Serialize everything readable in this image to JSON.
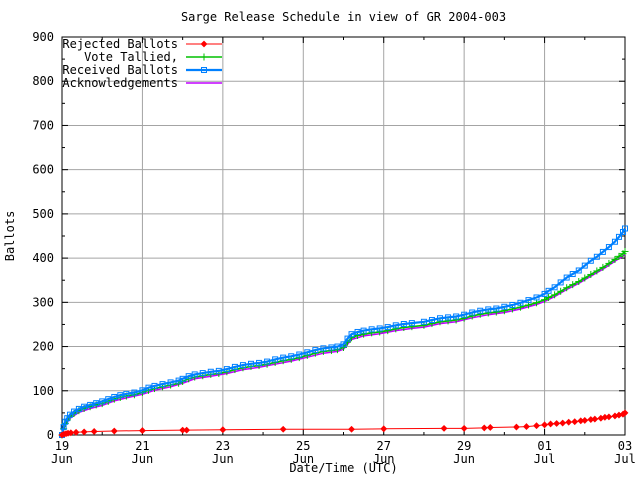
{
  "window": {
    "background": "#ffffff"
  },
  "chart_data": {
    "type": "line",
    "title": "Sarge Release Schedule in view of GR 2004-003",
    "xlabel": "Date/Time (UTC)",
    "ylabel": "Ballots",
    "xlim": [
      0,
      14
    ],
    "ylim": [
      0,
      900
    ],
    "y_major_step": 100,
    "y_minor_step": 50,
    "x_major_step": 2,
    "x_minor_step": 1,
    "grid": true,
    "grid_color": "#a4a4a4",
    "border_color": "#000000",
    "text_color": "#000000",
    "legend_position": "top-left",
    "x_tick_labels": [
      {
        "x": 0,
        "top": "19",
        "bottom": "Jun"
      },
      {
        "x": 2,
        "top": "21",
        "bottom": "Jun"
      },
      {
        "x": 4,
        "top": "23",
        "bottom": "Jun"
      },
      {
        "x": 6,
        "top": "25",
        "bottom": "Jun"
      },
      {
        "x": 8,
        "top": "27",
        "bottom": "Jun"
      },
      {
        "x": 10,
        "top": "29",
        "bottom": "Jun"
      },
      {
        "x": 12,
        "top": "01",
        "bottom": "Jul"
      },
      {
        "x": 14,
        "top": "03",
        "bottom": "Jul"
      }
    ],
    "y_tick_labels": [
      "0",
      "100",
      "200",
      "300",
      "400",
      "500",
      "600",
      "700",
      "800",
      "900"
    ],
    "series": [
      {
        "name": "Rejected Ballots",
        "color": "#ff0000",
        "marker": "diamond",
        "line_width": 1,
        "z": 4,
        "points": [
          [
            0,
            0
          ],
          [
            0.05,
            2
          ],
          [
            0.1,
            3
          ],
          [
            0.15,
            4
          ],
          [
            0.22,
            5
          ],
          [
            0.35,
            6
          ],
          [
            0.55,
            7
          ],
          [
            0.8,
            8
          ],
          [
            1.3,
            9
          ],
          [
            2.0,
            10
          ],
          [
            3.0,
            11
          ],
          [
            3.1,
            11
          ],
          [
            4.0,
            12
          ],
          [
            5.5,
            13
          ],
          [
            7.2,
            13
          ],
          [
            8.0,
            14
          ],
          [
            9.5,
            15
          ],
          [
            10.0,
            15
          ],
          [
            10.5,
            16
          ],
          [
            10.65,
            17
          ],
          [
            11.3,
            18
          ],
          [
            11.55,
            19
          ],
          [
            11.8,
            21
          ],
          [
            12.0,
            23
          ],
          [
            12.15,
            25
          ],
          [
            12.3,
            26
          ],
          [
            12.45,
            27
          ],
          [
            12.6,
            29
          ],
          [
            12.75,
            30
          ],
          [
            12.9,
            32
          ],
          [
            13.0,
            33
          ],
          [
            13.15,
            35
          ],
          [
            13.25,
            36
          ],
          [
            13.4,
            38
          ],
          [
            13.5,
            40
          ],
          [
            13.6,
            41
          ],
          [
            13.75,
            43
          ],
          [
            13.85,
            45
          ],
          [
            13.95,
            47
          ],
          [
            14.0,
            50
          ]
        ]
      },
      {
        "name": "Vote Tallied,",
        "color": "#00c000",
        "marker": "plus",
        "line_width": 1.6,
        "z": 2,
        "points": [
          [
            0,
            0
          ],
          [
            0.04,
            14
          ],
          [
            0.08,
            26
          ],
          [
            0.13,
            34
          ],
          [
            0.2,
            42
          ],
          [
            0.3,
            49
          ],
          [
            0.42,
            55
          ],
          [
            0.55,
            60
          ],
          [
            0.7,
            64
          ],
          [
            0.85,
            68
          ],
          [
            1.0,
            71
          ],
          [
            1.15,
            76
          ],
          [
            1.3,
            81
          ],
          [
            1.45,
            85
          ],
          [
            1.6,
            88
          ],
          [
            1.8,
            91
          ],
          [
            2.0,
            96
          ],
          [
            2.15,
            101
          ],
          [
            2.3,
            105
          ],
          [
            2.5,
            109
          ],
          [
            2.7,
            113
          ],
          [
            2.9,
            117
          ],
          [
            3.0,
            121
          ],
          [
            3.15,
            127
          ],
          [
            3.3,
            131
          ],
          [
            3.5,
            134
          ],
          [
            3.7,
            137
          ],
          [
            3.9,
            139
          ],
          [
            4.1,
            143
          ],
          [
            4.3,
            148
          ],
          [
            4.5,
            152
          ],
          [
            4.7,
            155
          ],
          [
            4.9,
            157
          ],
          [
            5.1,
            160
          ],
          [
            5.3,
            164
          ],
          [
            5.5,
            168
          ],
          [
            5.7,
            171
          ],
          [
            5.9,
            175
          ],
          [
            6.1,
            180
          ],
          [
            6.3,
            185
          ],
          [
            6.5,
            189
          ],
          [
            6.7,
            191
          ],
          [
            6.85,
            193
          ],
          [
            7.0,
            198
          ],
          [
            7.1,
            210
          ],
          [
            7.2,
            220
          ],
          [
            7.35,
            225
          ],
          [
            7.5,
            228
          ],
          [
            7.7,
            231
          ],
          [
            7.9,
            233
          ],
          [
            8.1,
            236
          ],
          [
            8.3,
            240
          ],
          [
            8.5,
            243
          ],
          [
            8.7,
            245
          ],
          [
            9.0,
            248
          ],
          [
            9.2,
            252
          ],
          [
            9.4,
            256
          ],
          [
            9.6,
            258
          ],
          [
            9.8,
            260
          ],
          [
            10.0,
            264
          ],
          [
            10.2,
            269
          ],
          [
            10.4,
            273
          ],
          [
            10.6,
            276
          ],
          [
            10.8,
            278
          ],
          [
            11.0,
            281
          ],
          [
            11.2,
            285
          ],
          [
            11.4,
            289
          ],
          [
            11.6,
            294
          ],
          [
            11.8,
            299
          ],
          [
            12.0,
            306
          ],
          [
            12.1,
            311
          ],
          [
            12.25,
            317
          ],
          [
            12.4,
            325
          ],
          [
            12.55,
            333
          ],
          [
            12.7,
            340
          ],
          [
            12.85,
            347
          ],
          [
            13.0,
            355
          ],
          [
            13.15,
            363
          ],
          [
            13.3,
            371
          ],
          [
            13.45,
            379
          ],
          [
            13.6,
            388
          ],
          [
            13.75,
            397
          ],
          [
            13.85,
            404
          ],
          [
            13.95,
            410
          ],
          [
            14.0,
            415
          ]
        ]
      },
      {
        "name": "Received Ballots",
        "color": "#0080ff",
        "marker": "square",
        "line_width": 2.2,
        "z": 3,
        "points": [
          [
            0,
            0
          ],
          [
            0.04,
            18
          ],
          [
            0.08,
            30
          ],
          [
            0.13,
            38
          ],
          [
            0.2,
            46
          ],
          [
            0.3,
            53
          ],
          [
            0.42,
            59
          ],
          [
            0.55,
            64
          ],
          [
            0.7,
            68
          ],
          [
            0.85,
            72
          ],
          [
            1.0,
            76
          ],
          [
            1.15,
            81
          ],
          [
            1.3,
            86
          ],
          [
            1.45,
            90
          ],
          [
            1.6,
            93
          ],
          [
            1.8,
            96
          ],
          [
            2.0,
            101
          ],
          [
            2.15,
            107
          ],
          [
            2.3,
            111
          ],
          [
            2.5,
            115
          ],
          [
            2.7,
            119
          ],
          [
            2.9,
            123
          ],
          [
            3.0,
            127
          ],
          [
            3.15,
            133
          ],
          [
            3.3,
            137
          ],
          [
            3.5,
            140
          ],
          [
            3.7,
            143
          ],
          [
            3.9,
            145
          ],
          [
            4.1,
            149
          ],
          [
            4.3,
            154
          ],
          [
            4.5,
            158
          ],
          [
            4.7,
            161
          ],
          [
            4.9,
            163
          ],
          [
            5.1,
            166
          ],
          [
            5.3,
            171
          ],
          [
            5.5,
            175
          ],
          [
            5.7,
            178
          ],
          [
            5.9,
            182
          ],
          [
            6.1,
            187
          ],
          [
            6.3,
            192
          ],
          [
            6.5,
            196
          ],
          [
            6.7,
            198
          ],
          [
            6.85,
            200
          ],
          [
            7.0,
            205
          ],
          [
            7.1,
            218
          ],
          [
            7.2,
            228
          ],
          [
            7.35,
            233
          ],
          [
            7.5,
            236
          ],
          [
            7.7,
            239
          ],
          [
            7.9,
            241
          ],
          [
            8.1,
            244
          ],
          [
            8.3,
            248
          ],
          [
            8.5,
            251
          ],
          [
            8.7,
            253
          ],
          [
            9.0,
            256
          ],
          [
            9.2,
            260
          ],
          [
            9.4,
            264
          ],
          [
            9.6,
            266
          ],
          [
            9.8,
            268
          ],
          [
            10.0,
            272
          ],
          [
            10.2,
            277
          ],
          [
            10.4,
            281
          ],
          [
            10.6,
            284
          ],
          [
            10.8,
            286
          ],
          [
            11.0,
            290
          ],
          [
            11.2,
            294
          ],
          [
            11.4,
            299
          ],
          [
            11.6,
            305
          ],
          [
            11.8,
            311
          ],
          [
            12.0,
            319
          ],
          [
            12.1,
            326
          ],
          [
            12.25,
            334
          ],
          [
            12.4,
            345
          ],
          [
            12.55,
            356
          ],
          [
            12.7,
            364
          ],
          [
            12.85,
            372
          ],
          [
            13.0,
            383
          ],
          [
            13.15,
            394
          ],
          [
            13.3,
            403
          ],
          [
            13.45,
            414
          ],
          [
            13.6,
            425
          ],
          [
            13.75,
            437
          ],
          [
            13.85,
            448
          ],
          [
            13.95,
            459
          ],
          [
            14.0,
            467
          ]
        ]
      },
      {
        "name": "Acknowledgements",
        "color": "#c000ff",
        "marker": "none",
        "line_width": 1.5,
        "z": 1,
        "points": [
          [
            0,
            0
          ],
          [
            0.08,
            22
          ],
          [
            0.2,
            38
          ],
          [
            0.42,
            51
          ],
          [
            0.7,
            60
          ],
          [
            1.0,
            67
          ],
          [
            1.3,
            77
          ],
          [
            1.6,
            84
          ],
          [
            2.0,
            92
          ],
          [
            2.3,
            101
          ],
          [
            2.7,
            109
          ],
          [
            3.0,
            117
          ],
          [
            3.3,
            127
          ],
          [
            3.7,
            133
          ],
          [
            4.1,
            139
          ],
          [
            4.5,
            148
          ],
          [
            4.9,
            153
          ],
          [
            5.3,
            160
          ],
          [
            5.7,
            167
          ],
          [
            6.1,
            176
          ],
          [
            6.5,
            185
          ],
          [
            6.85,
            189
          ],
          [
            7.0,
            194
          ],
          [
            7.2,
            216
          ],
          [
            7.5,
            224
          ],
          [
            7.9,
            229
          ],
          [
            8.3,
            236
          ],
          [
            8.7,
            241
          ],
          [
            9.0,
            244
          ],
          [
            9.4,
            252
          ],
          [
            9.8,
            256
          ],
          [
            10.2,
            265
          ],
          [
            10.6,
            272
          ],
          [
            11.0,
            277
          ],
          [
            11.4,
            285
          ],
          [
            11.8,
            295
          ],
          [
            12.0,
            302
          ],
          [
            12.25,
            313
          ],
          [
            12.55,
            329
          ],
          [
            12.85,
            343
          ],
          [
            13.15,
            359
          ],
          [
            13.45,
            375
          ],
          [
            13.75,
            393
          ],
          [
            14.0,
            408
          ]
        ]
      }
    ]
  }
}
